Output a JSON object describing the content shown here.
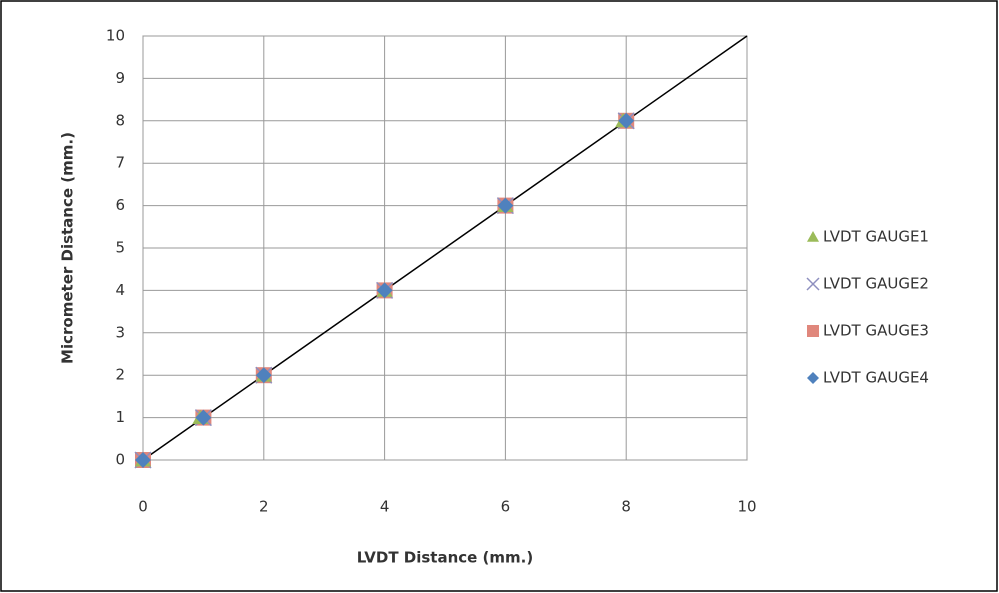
{
  "chart_data": {
    "type": "scatter",
    "x_label": "LVDT Distance (mm.)",
    "y_label": "Micrometer Distance (mm.)",
    "xlim": [
      0,
      10
    ],
    "xticks": [
      0,
      2,
      4,
      6,
      8,
      10
    ],
    "ylim": [
      0,
      10
    ],
    "yticks": [
      0,
      1,
      2,
      3,
      4,
      5,
      6,
      7,
      8,
      9,
      10
    ],
    "grid": true,
    "legend": "right",
    "series": [
      {
        "name": "LVDT GAUGE1",
        "color": "#9bbb59",
        "marker": "triangle",
        "x": [
          0,
          0.95,
          2,
          4,
          6,
          7.95
        ],
        "values": [
          0,
          1,
          2,
          4,
          6,
          8
        ]
      },
      {
        "name": "LVDT GAUGE2",
        "color": "#8e8fbf",
        "marker": "x",
        "x": [
          0,
          1,
          2,
          4,
          6,
          8
        ],
        "values": [
          0,
          1,
          2,
          4,
          6,
          8
        ]
      },
      {
        "name": "LVDT GAUGE3",
        "color": "#e0877c",
        "marker": "square",
        "x": [
          0,
          1,
          2,
          4,
          6,
          8
        ],
        "values": [
          0,
          1,
          2,
          4,
          6,
          8
        ]
      },
      {
        "name": "LVDT GAUGE4",
        "color": "#4f81bd",
        "marker": "diamond",
        "x": [
          0,
          1,
          2,
          4,
          6,
          8
        ],
        "values": [
          0,
          1,
          2,
          4,
          6,
          8
        ]
      }
    ],
    "trendline": {
      "color": "#000000",
      "x": [
        0,
        10
      ],
      "values": [
        0,
        10
      ]
    }
  }
}
